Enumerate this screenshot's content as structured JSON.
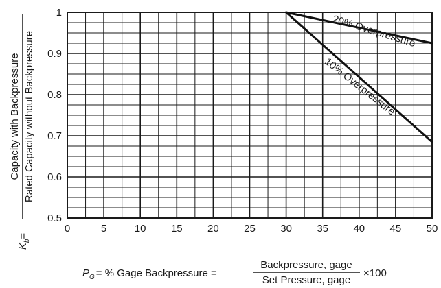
{
  "chart_data": {
    "type": "line",
    "xlim": [
      0,
      50
    ],
    "ylim": [
      0.5,
      1.0
    ],
    "x_ticks": [
      "0",
      "5",
      "10",
      "15",
      "20",
      "25",
      "30",
      "35",
      "40",
      "45",
      "50"
    ],
    "y_ticks": [
      "0.5",
      "0.6",
      "0.7",
      "0.8",
      "0.9",
      "1"
    ],
    "grid": true,
    "series": [
      {
        "name": "20% Overpressure",
        "x": [
          30,
          50
        ],
        "y": [
          1.0,
          0.925
        ]
      },
      {
        "name": "10% Overpressure",
        "x": [
          30,
          50
        ],
        "y": [
          1.0,
          0.685
        ]
      }
    ],
    "ylabel": {
      "symbol": "K",
      "subscript": "b",
      "equals": "=",
      "numerator": "Capacity with Backpressure",
      "denominator": "Rated Capacity without Backpressure"
    },
    "xlabel": {
      "symbol": "P",
      "subscript": "G",
      "lead": "= % Gage Backpressure =",
      "numerator": "Backpressure, gage",
      "denominator": "Set Pressure, gage",
      "multiplier": "×100"
    }
  }
}
